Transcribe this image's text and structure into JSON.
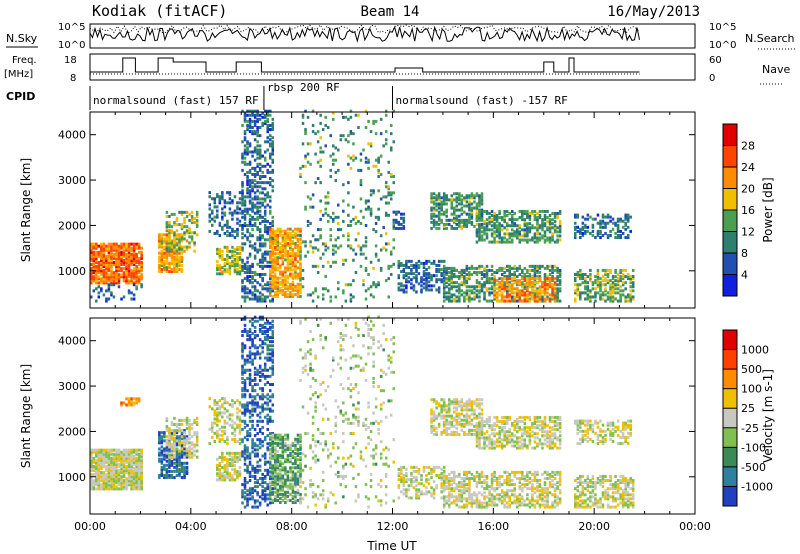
{
  "header": {
    "station": "Kodiak (fitACF)",
    "beam": "Beam 14",
    "date": "16/May/2013"
  },
  "top_panels": {
    "nsky_label": "N.Sky",
    "nsky_tick_top": "10^5",
    "nsky_tick_bottom": "10^0",
    "nsearch_label": "N.Search",
    "nsearch_tick_top": "10^5",
    "nsearch_tick_bottom": "10^0",
    "freq_label": "Freq.",
    "freq_unit": "[MHz]",
    "freq_tick_top": "18",
    "freq_tick_bottom": "8",
    "nave_label": "Nave",
    "nave_tick_top": "60",
    "nave_tick_bottom": "0",
    "cpid_label": "CPID"
  },
  "cpid_segments": [
    {
      "label": "normalsound (fast) 157 RF",
      "start_hour": 0.0,
      "end_hour": 6.9
    },
    {
      "label": "rbsp 200 RF",
      "start_hour": 6.9,
      "end_hour": 12.0
    },
    {
      "label": "normalsound (fast) -157 RF",
      "start_hour": 12.0,
      "end_hour": 21.8
    }
  ],
  "chart_data": [
    {
      "type": "heatmap",
      "panel": "power",
      "ylabel": "Slant Range [km]",
      "xlabel": "",
      "x_range_hours": [
        0,
        24
      ],
      "ylim": [
        180,
        4500
      ],
      "yticks": [
        "1000",
        "2000",
        "3000",
        "4000"
      ],
      "xticks": [
        "00:00",
        "04:00",
        "08:00",
        "12:00",
        "16:00",
        "20:00",
        "00:00"
      ],
      "colorbar": {
        "label": "Power [dB]",
        "ticks": [
          "4",
          "8",
          "12",
          "16",
          "20",
          "24",
          "28"
        ],
        "colors": [
          "#1020e0",
          "#2050b0",
          "#2f7f6f",
          "#4aa050",
          "#f0c000",
          "#ff8c00",
          "#ff4500",
          "#e00000"
        ]
      },
      "regions": [
        {
          "x0": 0.0,
          "x1": 2.1,
          "y0": 700,
          "y1": 1600,
          "level": 5.5,
          "density": 0.85
        },
        {
          "x0": 0.0,
          "x1": 2.1,
          "y0": 300,
          "y1": 700,
          "level": 1.5,
          "density": 0.2
        },
        {
          "x0": 2.7,
          "x1": 3.7,
          "y0": 950,
          "y1": 1800,
          "level": 4.5,
          "density": 0.75
        },
        {
          "x0": 3.0,
          "x1": 4.3,
          "y0": 1400,
          "y1": 2300,
          "level": 3.5,
          "density": 0.45
        },
        {
          "x0": 4.7,
          "x1": 5.9,
          "y0": 1700,
          "y1": 2700,
          "level": 1.5,
          "density": 0.35
        },
        {
          "x0": 5.0,
          "x1": 5.9,
          "y0": 900,
          "y1": 1500,
          "level": 3.5,
          "density": 0.65
        },
        {
          "x0": 6.0,
          "x1": 7.2,
          "y0": 300,
          "y1": 4500,
          "level": 1.5,
          "density": 0.45
        },
        {
          "x0": 7.1,
          "x1": 8.3,
          "y0": 400,
          "y1": 1900,
          "level": 4.5,
          "density": 0.7
        },
        {
          "x0": 8.3,
          "x1": 12.0,
          "y0": 300,
          "y1": 4500,
          "level": 2.5,
          "density": 0.1
        },
        {
          "x0": 12.2,
          "x1": 14.0,
          "y0": 500,
          "y1": 1200,
          "level": 1.5,
          "density": 0.45
        },
        {
          "x0": 12.0,
          "x1": 12.4,
          "y0": 1900,
          "y1": 2300,
          "level": 1.5,
          "density": 0.6
        },
        {
          "x0": 13.5,
          "x1": 15.5,
          "y0": 1900,
          "y1": 2700,
          "level": 2.5,
          "density": 0.55
        },
        {
          "x0": 15.3,
          "x1": 18.7,
          "y0": 1600,
          "y1": 2300,
          "level": 2.5,
          "density": 0.55
        },
        {
          "x0": 14.0,
          "x1": 18.7,
          "y0": 300,
          "y1": 1100,
          "level": 2.5,
          "density": 0.5
        },
        {
          "x0": 16.0,
          "x1": 18.5,
          "y0": 300,
          "y1": 800,
          "level": 5.0,
          "density": 0.6
        },
        {
          "x0": 19.2,
          "x1": 21.5,
          "y0": 1700,
          "y1": 2200,
          "level": 1.5,
          "density": 0.45
        },
        {
          "x0": 19.2,
          "x1": 21.6,
          "y0": 300,
          "y1": 1000,
          "level": 3.0,
          "density": 0.55
        }
      ]
    },
    {
      "type": "heatmap",
      "panel": "velocity",
      "ylabel": "Slant Range [km]",
      "xlabel": "Time UT",
      "x_range_hours": [
        0,
        24
      ],
      "ylim": [
        180,
        4500
      ],
      "yticks": [
        "1000",
        "2000",
        "3000",
        "4000"
      ],
      "xticks": [
        "00:00",
        "04:00",
        "08:00",
        "12:00",
        "16:00",
        "20:00",
        "00:00"
      ],
      "colorbar": {
        "label": "Velocity [m s-1]",
        "ticks": [
          "1000",
          "500",
          "100",
          "25",
          "-25",
          "-100",
          "-500",
          "-1000"
        ],
        "colors": [
          "#2040c0",
          "#2f7f9f",
          "#3a8a55",
          "#7fc050",
          "#c8c8c0",
          "#f0c000",
          "#ff8c00",
          "#ff4000",
          "#e00000"
        ]
      },
      "regions": [
        {
          "x0": 0.0,
          "x1": 2.1,
          "y0": 700,
          "y1": 1600,
          "level": 4.0,
          "density": 0.9
        },
        {
          "x0": 1.2,
          "x1": 2.0,
          "y0": 2550,
          "y1": 2700,
          "level": 5.5,
          "density": 0.6
        },
        {
          "x0": 2.7,
          "x1": 3.9,
          "y0": 950,
          "y1": 2000,
          "level": 0.5,
          "density": 0.7
        },
        {
          "x0": 3.0,
          "x1": 4.3,
          "y0": 1400,
          "y1": 2300,
          "level": 4.0,
          "density": 0.5
        },
        {
          "x0": 4.7,
          "x1": 5.9,
          "y0": 1700,
          "y1": 2700,
          "level": 4.0,
          "density": 0.35
        },
        {
          "x0": 5.0,
          "x1": 5.9,
          "y0": 900,
          "y1": 1500,
          "level": 4.0,
          "density": 0.65
        },
        {
          "x0": 6.0,
          "x1": 7.2,
          "y0": 300,
          "y1": 4500,
          "level": 0.5,
          "density": 0.4
        },
        {
          "x0": 7.1,
          "x1": 8.3,
          "y0": 400,
          "y1": 1900,
          "level": 2.5,
          "density": 0.65
        },
        {
          "x0": 8.3,
          "x1": 12.0,
          "y0": 300,
          "y1": 4500,
          "level": 3.5,
          "density": 0.1
        },
        {
          "x0": 12.2,
          "x1": 14.0,
          "y0": 500,
          "y1": 1200,
          "level": 4.0,
          "density": 0.45
        },
        {
          "x0": 13.5,
          "x1": 15.5,
          "y0": 1900,
          "y1": 2700,
          "level": 4.0,
          "density": 0.55
        },
        {
          "x0": 15.3,
          "x1": 18.7,
          "y0": 1600,
          "y1": 2300,
          "level": 4.0,
          "density": 0.55
        },
        {
          "x0": 14.0,
          "x1": 18.7,
          "y0": 300,
          "y1": 1100,
          "level": 4.0,
          "density": 0.55
        },
        {
          "x0": 19.2,
          "x1": 21.5,
          "y0": 1700,
          "y1": 2200,
          "level": 4.0,
          "density": 0.45
        },
        {
          "x0": 19.2,
          "x1": 21.6,
          "y0": 300,
          "y1": 1000,
          "level": 4.0,
          "density": 0.55
        }
      ]
    }
  ]
}
